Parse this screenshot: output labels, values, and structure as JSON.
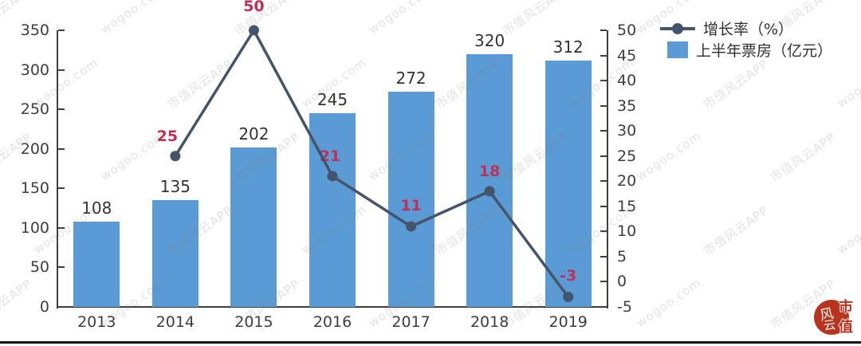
{
  "chart_data": {
    "type": "combo-bar-line",
    "categories": [
      "2013",
      "2014",
      "2015",
      "2016",
      "2017",
      "2018",
      "2019"
    ],
    "series": [
      {
        "name": "上半年票房（亿元）",
        "type": "bar",
        "axis": "left",
        "color": "#5B9BD5",
        "values": [
          108,
          135,
          202,
          245,
          272,
          320,
          312
        ],
        "labels": [
          "108",
          "135",
          "202",
          "245",
          "272",
          "320",
          "312"
        ],
        "label_color": "#333333"
      },
      {
        "name": "增长率（%）",
        "type": "line",
        "axis": "right",
        "color": "#44546A",
        "values": [
          null,
          25,
          50,
          21,
          11,
          18,
          -3
        ],
        "labels": [
          "",
          "25",
          "50",
          "21",
          "11",
          "18",
          "-3"
        ],
        "label_color": "#C22F56"
      }
    ],
    "left_axis": {
      "min": 0,
      "max": 350,
      "step": 50,
      "tick_labels": [
        "350",
        "300",
        "250",
        "200",
        "150",
        "100",
        "50",
        "0"
      ]
    },
    "right_axis": {
      "min": -5,
      "max": 50,
      "step": 5,
      "tick_labels": [
        "50",
        "45",
        "40",
        "35",
        "30",
        "25",
        "20",
        "15",
        "10",
        "5",
        "0",
        "-5"
      ]
    },
    "grid": false,
    "legend_position": "top-right",
    "title": ""
  },
  "watermark": {
    "texts": [
      "市值风云APP",
      "wogoo.com"
    ]
  },
  "logo": {
    "circle_text_top": "风",
    "circle_text_bottom": "云",
    "side_text_top": "市",
    "side_text_bottom": "值",
    "color": "#B8341F"
  }
}
